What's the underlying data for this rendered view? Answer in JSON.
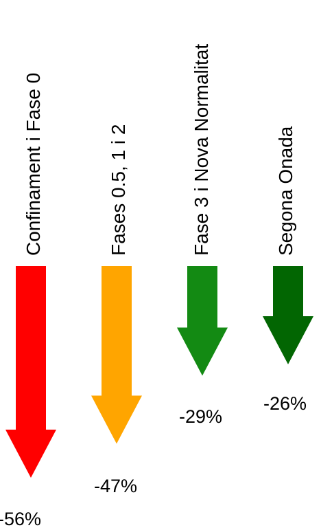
{
  "chart_data": {
    "type": "bar",
    "categories": [
      "Confinament i Fase 0",
      "Fases 0.5, 1 i 2",
      "Fase 3 i Nova Normalitat",
      "Segona Onada"
    ],
    "values": [
      -56,
      -47,
      -29,
      -26
    ],
    "value_labels": [
      "-56%",
      "-47%",
      "-29%",
      "-26%"
    ],
    "colors": [
      "#ff0000",
      "#ffa500",
      "#138a13",
      "#026602"
    ],
    "title": "",
    "xlabel": "",
    "ylabel": "",
    "ylim": [
      -60,
      0
    ],
    "grid": false
  }
}
